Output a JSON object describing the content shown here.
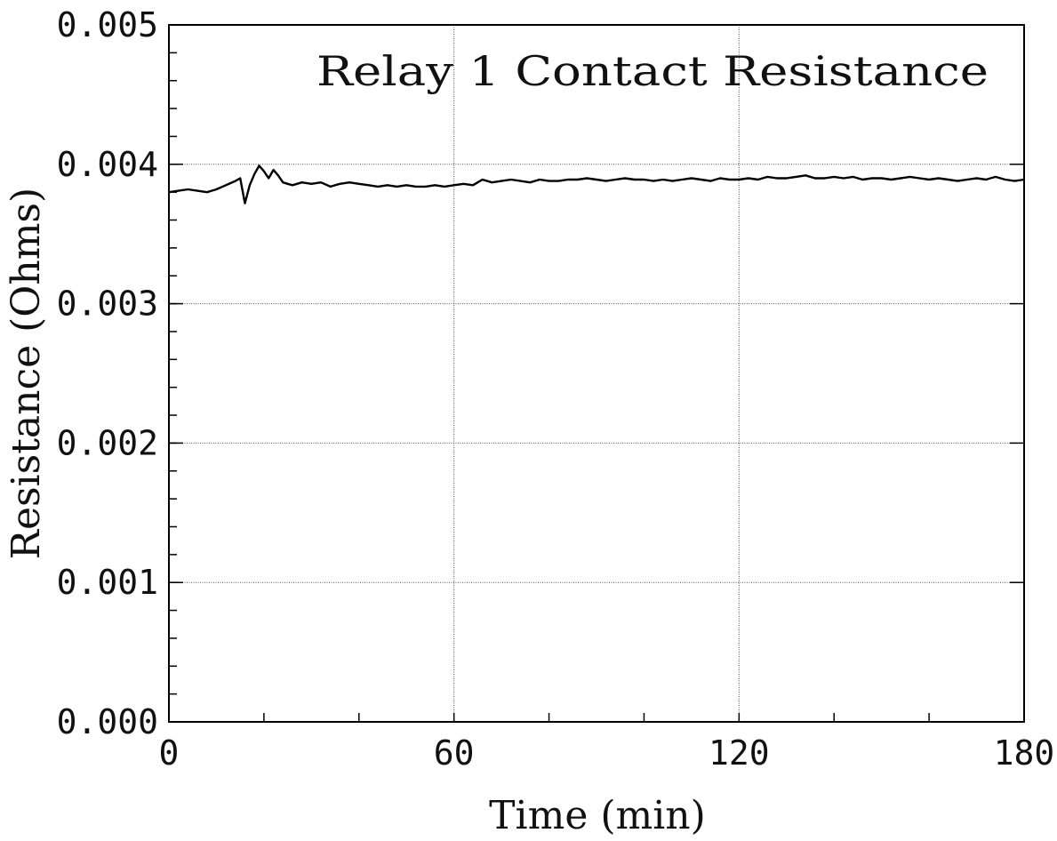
{
  "chart_data": {
    "type": "line",
    "title": "Relay 1 Contact Resistance",
    "xlabel": "Time (min)",
    "ylabel": "Resistance (Ohms)",
    "xlim": [
      0,
      180
    ],
    "ylim": [
      0,
      0.005
    ],
    "x_ticks": [
      "0",
      "60",
      "120",
      "180"
    ],
    "y_ticks": [
      "0.000",
      "0.001",
      "0.002",
      "0.003",
      "0.004",
      "0.005"
    ],
    "x_minor_step": 20,
    "y_minor_step": 0.0002,
    "grid": true,
    "series": [
      {
        "x": [
          0,
          2,
          4,
          6,
          8,
          10,
          12,
          14,
          15,
          16,
          17,
          18,
          19,
          20,
          21,
          22,
          23,
          24,
          25,
          26,
          28,
          30,
          32,
          34,
          36,
          38,
          40,
          42,
          44,
          46,
          48,
          50,
          52,
          54,
          56,
          58,
          60,
          62,
          64,
          66,
          68,
          70,
          72,
          74,
          76,
          78,
          80,
          82,
          84,
          86,
          88,
          90,
          92,
          94,
          96,
          98,
          100,
          102,
          104,
          106,
          108,
          110,
          112,
          114,
          116,
          118,
          120,
          122,
          124,
          126,
          128,
          130,
          132,
          134,
          136,
          138,
          140,
          142,
          144,
          146,
          148,
          150,
          152,
          154,
          156,
          158,
          160,
          162,
          164,
          166,
          168,
          170,
          172,
          174,
          176,
          178,
          180
        ],
        "y": [
          0.0038,
          0.00381,
          0.00382,
          0.00381,
          0.0038,
          0.00382,
          0.00385,
          0.00388,
          0.0039,
          0.00372,
          0.00385,
          0.00393,
          0.00399,
          0.00395,
          0.0039,
          0.00396,
          0.00392,
          0.00387,
          0.00386,
          0.00385,
          0.00387,
          0.00386,
          0.00387,
          0.00384,
          0.00386,
          0.00387,
          0.00386,
          0.00385,
          0.00384,
          0.00385,
          0.00384,
          0.00385,
          0.00384,
          0.00384,
          0.00385,
          0.00384,
          0.00385,
          0.00386,
          0.00385,
          0.00389,
          0.00387,
          0.00388,
          0.00389,
          0.00388,
          0.00387,
          0.00389,
          0.00388,
          0.00388,
          0.00389,
          0.00389,
          0.0039,
          0.00389,
          0.00388,
          0.00389,
          0.0039,
          0.00389,
          0.00389,
          0.00388,
          0.00389,
          0.00388,
          0.00389,
          0.0039,
          0.00389,
          0.00388,
          0.0039,
          0.00389,
          0.00389,
          0.0039,
          0.00389,
          0.00391,
          0.0039,
          0.0039,
          0.00391,
          0.00392,
          0.0039,
          0.0039,
          0.00391,
          0.0039,
          0.00391,
          0.00389,
          0.0039,
          0.0039,
          0.00389,
          0.0039,
          0.00391,
          0.0039,
          0.00389,
          0.0039,
          0.00389,
          0.00388,
          0.00389,
          0.0039,
          0.00389,
          0.00391,
          0.00389,
          0.00388,
          0.00389
        ]
      }
    ]
  }
}
